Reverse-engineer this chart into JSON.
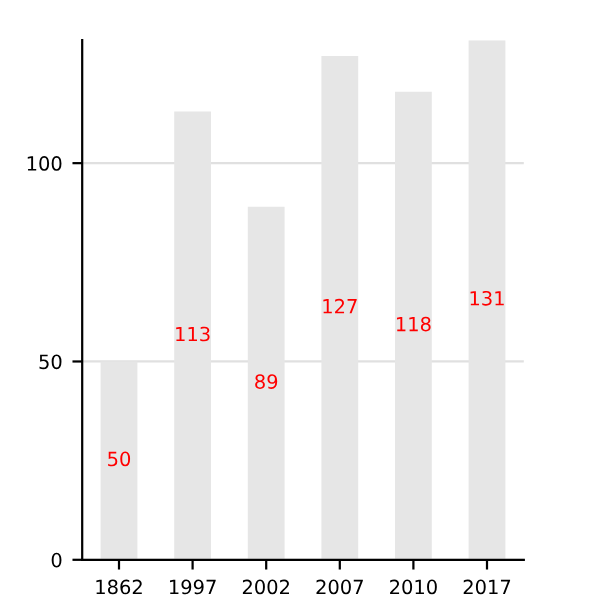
{
  "chart_data": {
    "type": "bar",
    "categories": [
      "1862",
      "1997",
      "2002",
      "2007",
      "2010",
      "2017"
    ],
    "values": [
      50,
      113,
      89,
      127,
      118,
      131
    ],
    "color": "#e6e6e6",
    "ylim": [
      0,
      131
    ],
    "yticks": [
      0,
      50,
      100
    ],
    "grid": "y",
    "data_labels": true
  }
}
